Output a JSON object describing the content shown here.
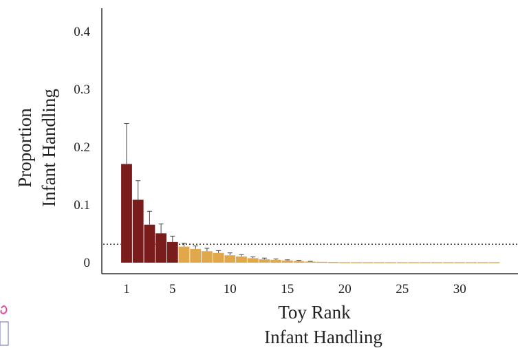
{
  "chart_data": {
    "type": "bar",
    "title": "",
    "xlabel_lines": [
      "Toy Rank",
      "Infant Handling"
    ],
    "ylabel_lines": [
      "Proportion",
      "Infant Handling"
    ],
    "xticks": [
      "1",
      "5",
      "10",
      "15",
      "20",
      "25",
      "30"
    ],
    "yticks": [
      "0",
      "0.1",
      "0.2",
      "0.3",
      "0.4"
    ],
    "ylim": [
      0,
      0.42
    ],
    "xlim": [
      0,
      33.5
    ],
    "reference_line": 0.032,
    "colors": {
      "high": "#7b1c1c",
      "low": "#e0a84a",
      "error": "#444444",
      "reference": "#333333"
    },
    "groups": [
      {
        "color": "high",
        "ranks": [
          1,
          2,
          3,
          4,
          5
        ]
      },
      {
        "color": "low",
        "ranks": [
          6,
          7,
          8,
          9,
          10,
          11,
          12,
          13,
          14,
          15,
          16,
          17,
          18,
          19,
          20,
          21,
          22,
          23,
          24,
          25,
          26,
          27,
          28,
          29,
          30,
          31,
          32,
          33
        ]
      }
    ],
    "series": [
      {
        "ranks": [
          1,
          2,
          3,
          4,
          5,
          6,
          7,
          8,
          9,
          10,
          11,
          12,
          13,
          14,
          15,
          16,
          17,
          18,
          19,
          20,
          21,
          22,
          23,
          24,
          25,
          26,
          27,
          28,
          29,
          30,
          31,
          32,
          33
        ],
        "values": [
          0.171,
          0.109,
          0.066,
          0.051,
          0.036,
          0.028,
          0.024,
          0.02,
          0.017,
          0.013,
          0.011,
          0.008,
          0.006,
          0.005,
          0.004,
          0.003,
          0.002,
          0.0015,
          0.0012,
          0.001,
          0.001,
          0.001,
          0.001,
          0.001,
          0.001,
          0.001,
          0.001,
          0.001,
          0.001,
          0.001,
          0.001,
          0.001,
          0.001
        ],
        "errors": [
          0.07,
          0.033,
          0.023,
          0.016,
          0.01,
          0.006,
          0.005,
          0.005,
          0.004,
          0.004,
          0.003,
          0.002,
          0.002,
          0.0015,
          0.001,
          0.001,
          0.0005,
          0,
          0,
          0,
          0,
          0,
          0,
          0,
          0,
          0,
          0,
          0,
          0,
          0,
          0,
          0,
          0
        ]
      }
    ]
  }
}
